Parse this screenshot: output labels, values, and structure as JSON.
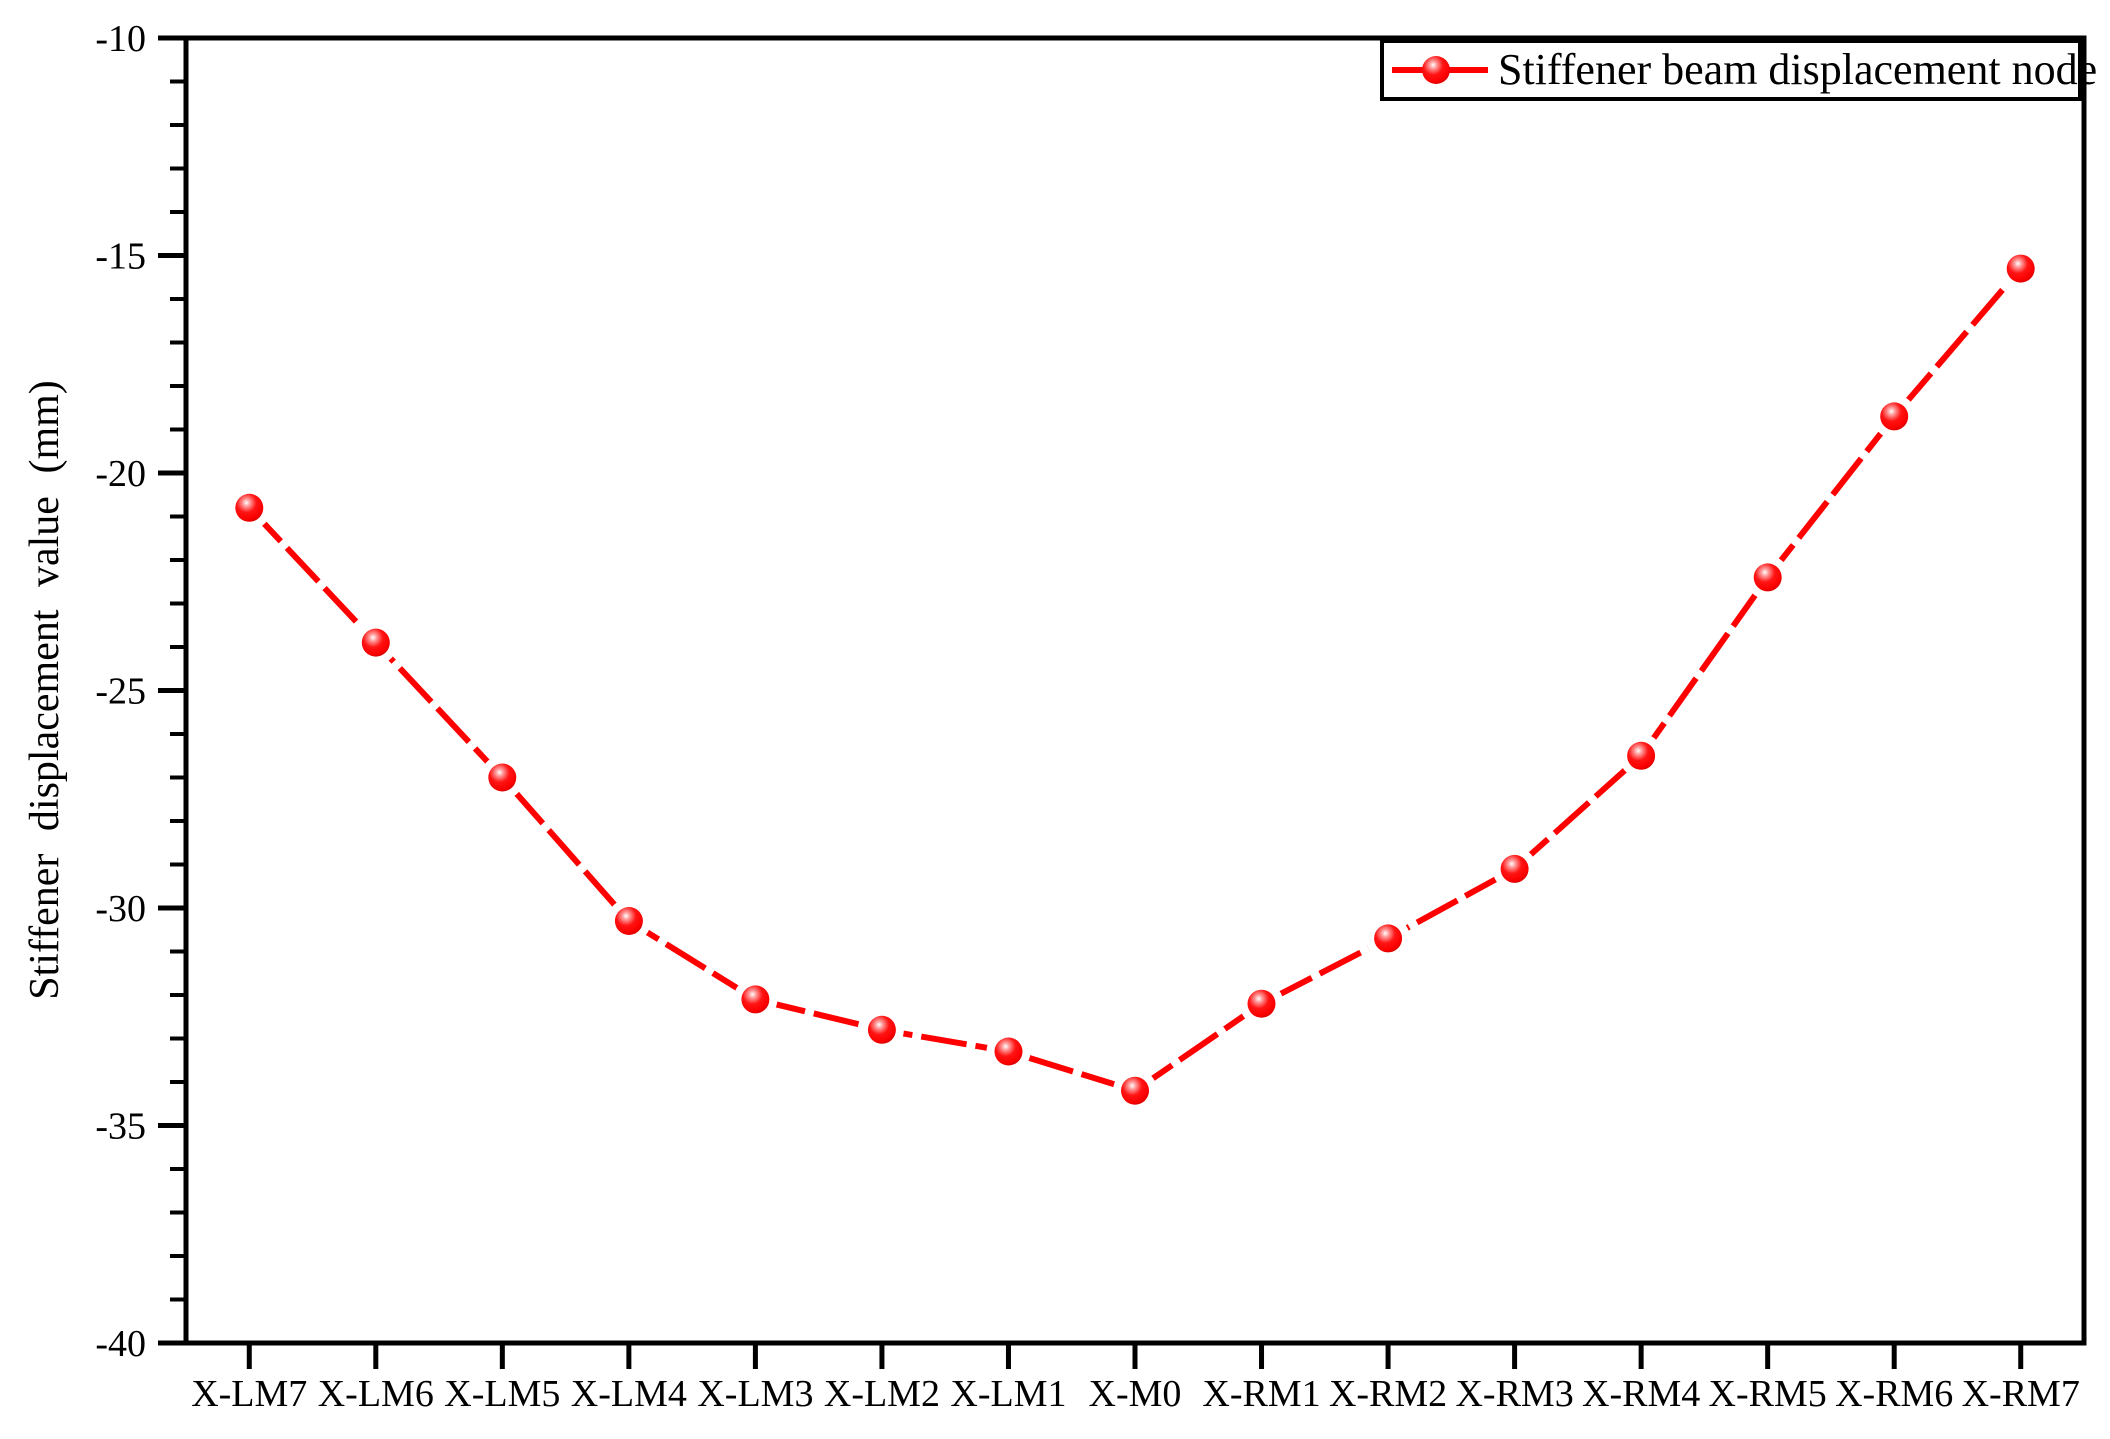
{
  "chart_data": {
    "type": "line",
    "title": "",
    "xlabel": "",
    "ylabel": "Stiffener displacement value (mm)",
    "categories": [
      "X-LM7",
      "X-LM6",
      "X-LM5",
      "X-LM4",
      "X-LM3",
      "X-LM2",
      "X-LM1",
      "X-M0",
      "X-RM1",
      "X-RM2",
      "X-RM3",
      "X-RM4",
      "X-RM5",
      "X-RM6",
      "X-RM7"
    ],
    "series": [
      {
        "name": "Stiffener beam displacement node",
        "values": [
          -20.8,
          -23.9,
          -27.0,
          -30.3,
          -32.1,
          -32.8,
          -33.3,
          -34.2,
          -32.2,
          -30.7,
          -29.1,
          -26.5,
          -22.4,
          -18.7,
          -15.3
        ],
        "color": "#ff0000",
        "marker": "sphere"
      }
    ],
    "ylim": [
      -40,
      -10
    ],
    "ytick_labels": [
      "-10",
      "-15",
      "-20",
      "-25",
      "-30",
      "-35",
      "-40"
    ],
    "ytick_step": 5,
    "yminor_step": 1,
    "grid": false,
    "legend_position": "top-right"
  }
}
